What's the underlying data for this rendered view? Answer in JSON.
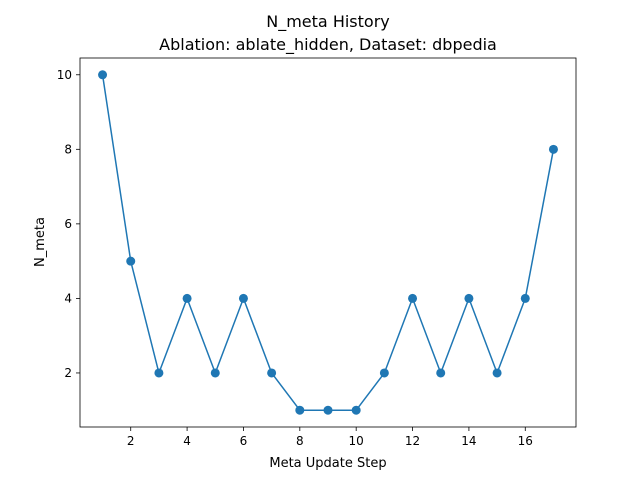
{
  "chart_data": {
    "type": "line",
    "title": "N_meta History",
    "subtitle": "Ablation: ablate_hidden, Dataset: dbpedia",
    "xlabel": "Meta Update Step",
    "ylabel": "N_meta",
    "x": [
      1,
      2,
      3,
      4,
      5,
      6,
      7,
      8,
      9,
      10,
      11,
      12,
      13,
      14,
      15,
      16,
      17
    ],
    "series": [
      {
        "values": [
          10,
          5,
          2,
          4,
          2,
          4,
          2,
          1,
          1,
          1,
          2,
          4,
          2,
          4,
          2,
          4,
          8
        ]
      }
    ],
    "xlim": [
      0.2,
      17.8
    ],
    "ylim": [
      0.55,
      10.45
    ],
    "xticks": [
      2,
      4,
      6,
      8,
      10,
      12,
      14,
      16
    ],
    "yticks": [
      2,
      4,
      6,
      8,
      10
    ],
    "grid": false,
    "line_color": "#1f77b4",
    "marker": "circle"
  }
}
